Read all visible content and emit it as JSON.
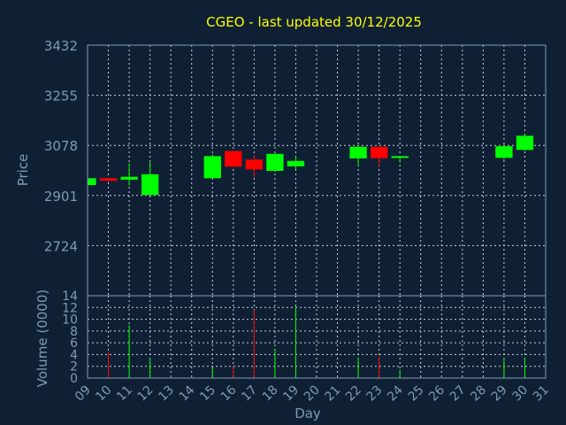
{
  "chart_data": [
    {
      "type": "candlestick",
      "title": "CGEO - last updated 30/12/2025",
      "ylabel": "Price",
      "ylim": [
        2547,
        3432
      ],
      "yticks": [
        "3432",
        "3255",
        "3078",
        "2901",
        "2724"
      ],
      "grid": true,
      "up_color": "#00ff00",
      "down_color": "#ff0000",
      "days": [
        "09",
        "10",
        "11",
        "12",
        "13",
        "14",
        "15",
        "16",
        "17",
        "18",
        "19",
        "20",
        "21",
        "22",
        "23",
        "24",
        "25",
        "26",
        "27",
        "28",
        "29",
        "30",
        "31"
      ],
      "candles": [
        {
          "day": "09",
          "open": 2938,
          "high": 2962,
          "low": 2934,
          "close": 2962
        },
        {
          "day": "10",
          "open": 2962,
          "high": 2964,
          "low": 2950,
          "close": 2953
        },
        {
          "day": "11",
          "open": 2957,
          "high": 3015,
          "low": 2936,
          "close": 2967
        },
        {
          "day": "12",
          "open": 2903,
          "high": 3020,
          "low": 2900,
          "close": 2976
        },
        {
          "day": "15",
          "open": 2962,
          "high": 3046,
          "low": 2962,
          "close": 3040
        },
        {
          "day": "16",
          "open": 3058,
          "high": 3060,
          "low": 3000,
          "close": 3003
        },
        {
          "day": "17",
          "open": 3028,
          "high": 3043,
          "low": 2965,
          "close": 2993
        },
        {
          "day": "18",
          "open": 2988,
          "high": 3052,
          "low": 2985,
          "close": 3048
        },
        {
          "day": "19",
          "open": 3004,
          "high": 3040,
          "low": 2993,
          "close": 3023
        },
        {
          "day": "22",
          "open": 3032,
          "high": 3078,
          "low": 3004,
          "close": 3073
        },
        {
          "day": "23",
          "open": 3073,
          "high": 3073,
          "low": 3005,
          "close": 3033
        },
        {
          "day": "24",
          "open": 3035,
          "high": 3040,
          "low": 3018,
          "close": 3040
        },
        {
          "day": "29",
          "open": 3034,
          "high": 3080,
          "low": 3028,
          "close": 3075
        },
        {
          "day": "30",
          "open": 3062,
          "high": 3115,
          "low": 3060,
          "close": 3112
        }
      ]
    },
    {
      "type": "bar",
      "ylabel": "Volume (0000)",
      "xlabel": "Day",
      "ylim": [
        0,
        14
      ],
      "yticks": [
        "0",
        "2",
        "4",
        "6",
        "8",
        "10",
        "12",
        "14"
      ],
      "values": [
        {
          "day": "10",
          "value": 4.4,
          "color": "#ff0000"
        },
        {
          "day": "11",
          "value": 9,
          "color": "#00ff00"
        },
        {
          "day": "12",
          "value": 3.3,
          "color": "#00ff00"
        },
        {
          "day": "15",
          "value": 1.8,
          "color": "#00ff00"
        },
        {
          "day": "16",
          "value": 2,
          "color": "#ff0000"
        },
        {
          "day": "17",
          "value": 11.6,
          "color": "#ff0000"
        },
        {
          "day": "18",
          "value": 5,
          "color": "#00ff00"
        },
        {
          "day": "19",
          "value": 12.3,
          "color": "#00ff00"
        },
        {
          "day": "22",
          "value": 3.5,
          "color": "#00ff00"
        },
        {
          "day": "23",
          "value": 3.7,
          "color": "#ff0000"
        },
        {
          "day": "24",
          "value": 1.4,
          "color": "#00ff00"
        },
        {
          "day": "29",
          "value": 3.3,
          "color": "#00ff00"
        },
        {
          "day": "30",
          "value": 3.5,
          "color": "#00ff00"
        }
      ]
    }
  ]
}
